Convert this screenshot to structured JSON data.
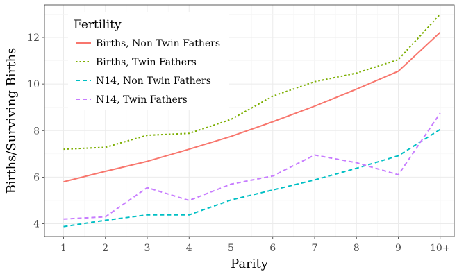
{
  "chart_data": {
    "type": "line",
    "xlabel": "Parity",
    "ylabel": "Births/Surviving Births",
    "categories": [
      "1",
      "2",
      "3",
      "4",
      "5",
      "6",
      "7",
      "8",
      "9",
      "10+"
    ],
    "ylim": [
      3.45,
      13.4
    ],
    "yticks": [
      4,
      6,
      8,
      10,
      12
    ],
    "grid": true,
    "legend": {
      "title": "Fertility",
      "placement": "top-left"
    },
    "series": [
      {
        "name": "Births, Non Twin Fathers",
        "color": "#F8766D",
        "dash": "solid",
        "values": [
          5.8,
          6.25,
          6.68,
          7.2,
          7.75,
          8.38,
          9.05,
          9.78,
          10.55,
          12.22
        ]
      },
      {
        "name": "Births, Twin Fathers",
        "color": "#7CAE00",
        "dash": "dotted",
        "values": [
          7.2,
          7.28,
          7.8,
          7.88,
          8.48,
          9.48,
          10.1,
          10.47,
          11.05,
          13.0
        ]
      },
      {
        "name": "N14, Non Twin Fathers",
        "color": "#00BFC4",
        "dash": "dashed",
        "values": [
          3.88,
          4.15,
          4.38,
          4.38,
          5.02,
          5.45,
          5.88,
          6.38,
          6.92,
          8.05
        ]
      },
      {
        "name": "N14, Twin Fathers",
        "color": "#C77CFF",
        "dash": "dashed",
        "values": [
          4.2,
          4.3,
          5.55,
          5.0,
          5.7,
          6.05,
          6.95,
          6.62,
          6.1,
          8.75
        ]
      }
    ]
  }
}
